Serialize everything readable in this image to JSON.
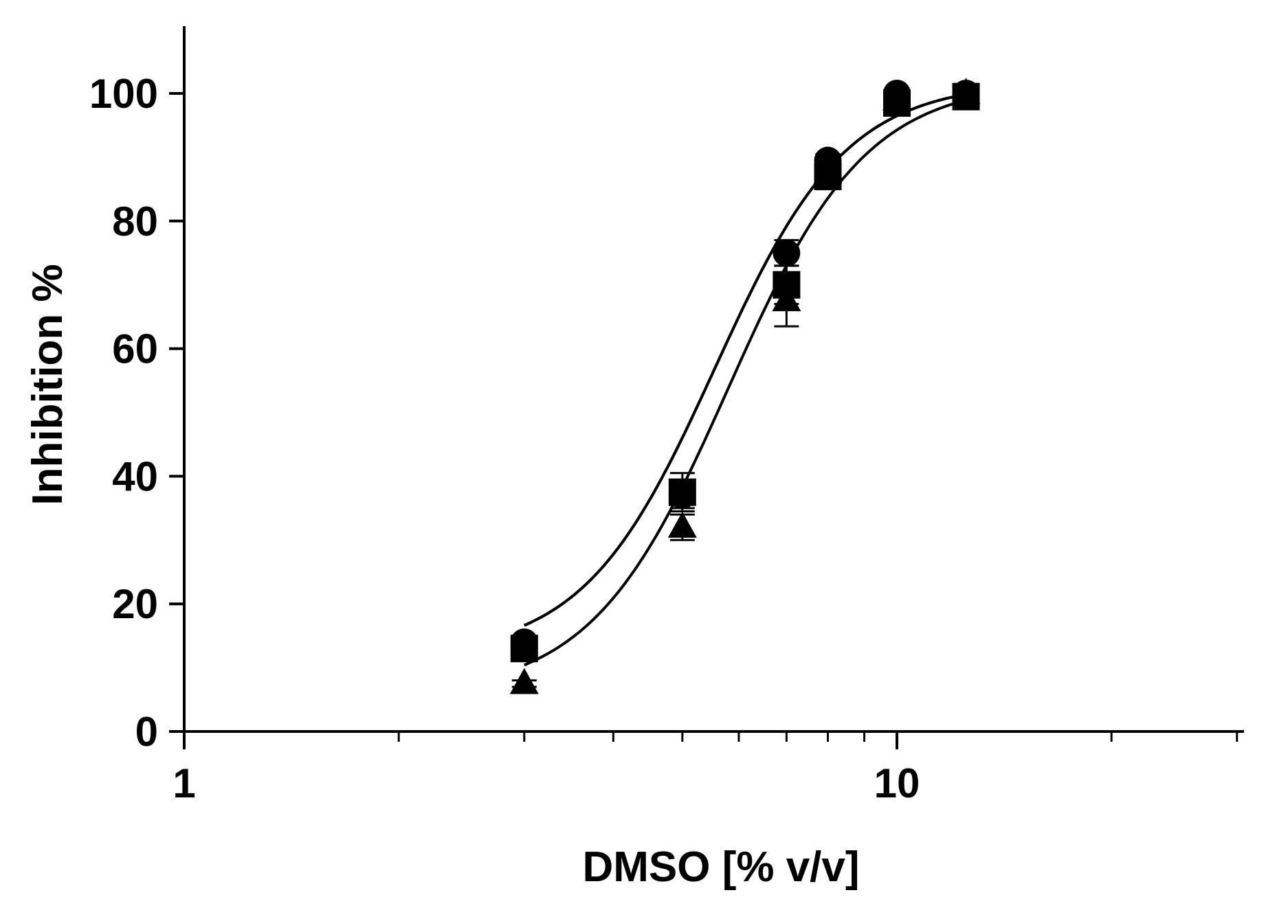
{
  "chart_data": {
    "type": "scatter",
    "title": "",
    "xlabel": "DMSO [% v/v]",
    "ylabel": "Inhibition %",
    "x_scale": "log",
    "xlim": [
      1,
      30
    ],
    "ylim": [
      0,
      110
    ],
    "x_tick_labels": [
      "1",
      "10"
    ],
    "y_tick_labels": [
      "0",
      "20",
      "40",
      "60",
      "80",
      "100"
    ],
    "y_ticks": [
      0,
      20,
      40,
      60,
      80,
      100
    ],
    "x_major_ticks": [
      1,
      10
    ],
    "x_minor_ticks": [
      2,
      3,
      4,
      5,
      6,
      7,
      8,
      9,
      20,
      30
    ],
    "grid": false,
    "legend": "none",
    "series": [
      {
        "marker": "circle",
        "x": [
          3,
          5,
          7,
          8,
          10,
          12.5
        ],
        "y": [
          14,
          37,
          75,
          89.5,
          100,
          100
        ],
        "error": [
          1,
          2,
          2,
          1,
          0.5,
          0.5
        ],
        "fit": {
          "bottom": 11.9,
          "top": 101.8,
          "ec50": 5.55,
          "hill": 4.7
        }
      },
      {
        "marker": "square",
        "x": [
          3,
          5,
          7,
          8,
          10,
          12.5
        ],
        "y": [
          13,
          37.5,
          70,
          87,
          98.5,
          99.5
        ],
        "error": [
          1,
          3,
          3,
          2,
          1,
          0.5
        ],
        "fit": {
          "bottom": 11.9,
          "top": 101.8,
          "ec50": 5.55,
          "hill": 4.7
        }
      },
      {
        "marker": "triangle",
        "x": [
          3,
          5,
          7,
          8,
          10,
          12.5
        ],
        "y": [
          7.5,
          32,
          67.5,
          87.5,
          99,
          100
        ],
        "error": [
          0.5,
          2,
          4,
          2,
          1,
          0.5
        ],
        "fit": {
          "bottom": 5.7,
          "top": 101.9,
          "ec50": 5.8,
          "hill": 4.5
        }
      }
    ]
  }
}
